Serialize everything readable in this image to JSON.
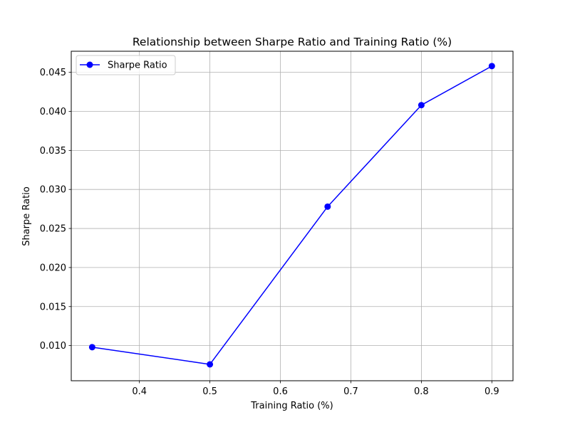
{
  "chart_data": {
    "type": "line",
    "title": "Relationship between Sharpe Ratio and Training Ratio (%)",
    "xlabel": "Training Ratio (%)",
    "ylabel": "Sharpe Ratio",
    "xlim": [
      0.3033,
      0.93
    ],
    "ylim": [
      0.0055,
      0.0477
    ],
    "x_ticks": [
      0.4,
      0.5,
      0.6,
      0.7,
      0.8,
      0.9
    ],
    "x_tick_labels": [
      "0.4",
      "0.5",
      "0.6",
      "0.7",
      "0.8",
      "0.9"
    ],
    "y_ticks": [
      0.01,
      0.015,
      0.02,
      0.025,
      0.03,
      0.035,
      0.04,
      0.045
    ],
    "y_tick_labels": [
      "0.010",
      "0.015",
      "0.020",
      "0.025",
      "0.030",
      "0.035",
      "0.040",
      "0.045"
    ],
    "grid": true,
    "legend_position": "upper-left",
    "series": [
      {
        "name": "Sharpe Ratio",
        "color": "#0000ff",
        "marker": "circle",
        "x": [
          0.333,
          0.5,
          0.667,
          0.8,
          0.9
        ],
        "y": [
          0.0098,
          0.0076,
          0.0278,
          0.0408,
          0.0458
        ]
      }
    ]
  }
}
